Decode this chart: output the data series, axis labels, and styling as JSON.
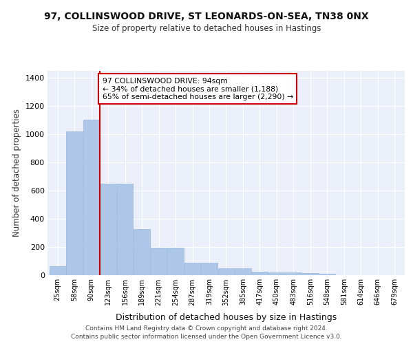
{
  "title": "97, COLLINSWOOD DRIVE, ST LEONARDS-ON-SEA, TN38 0NX",
  "subtitle": "Size of property relative to detached houses in Hastings",
  "xlabel": "Distribution of detached houses by size in Hastings",
  "ylabel": "Number of detached properties",
  "bar_labels": [
    "25sqm",
    "58sqm",
    "90sqm",
    "123sqm",
    "156sqm",
    "189sqm",
    "221sqm",
    "254sqm",
    "287sqm",
    "319sqm",
    "352sqm",
    "385sqm",
    "417sqm",
    "450sqm",
    "483sqm",
    "516sqm",
    "548sqm",
    "581sqm",
    "614sqm",
    "646sqm",
    "679sqm"
  ],
  "bar_values": [
    65,
    1020,
    1100,
    650,
    650,
    325,
    195,
    195,
    90,
    90,
    50,
    50,
    25,
    20,
    20,
    15,
    10,
    0,
    0,
    0,
    0
  ],
  "bar_color": "#aec6e8",
  "background_color": "#eaeff9",
  "grid_color": "#ffffff",
  "vline_x": 2.5,
  "vline_color": "#cc0000",
  "annotation_text": "97 COLLINSWOOD DRIVE: 94sqm\n← 34% of detached houses are smaller (1,188)\n65% of semi-detached houses are larger (2,290) →",
  "annotation_box_color": "#ffffff",
  "annotation_box_edge": "#cc0000",
  "ylim": [
    0,
    1450
  ],
  "yticks": [
    0,
    200,
    400,
    600,
    800,
    1000,
    1200,
    1400
  ],
  "footer": "Contains HM Land Registry data © Crown copyright and database right 2024.\nContains public sector information licensed under the Open Government Licence v3.0."
}
